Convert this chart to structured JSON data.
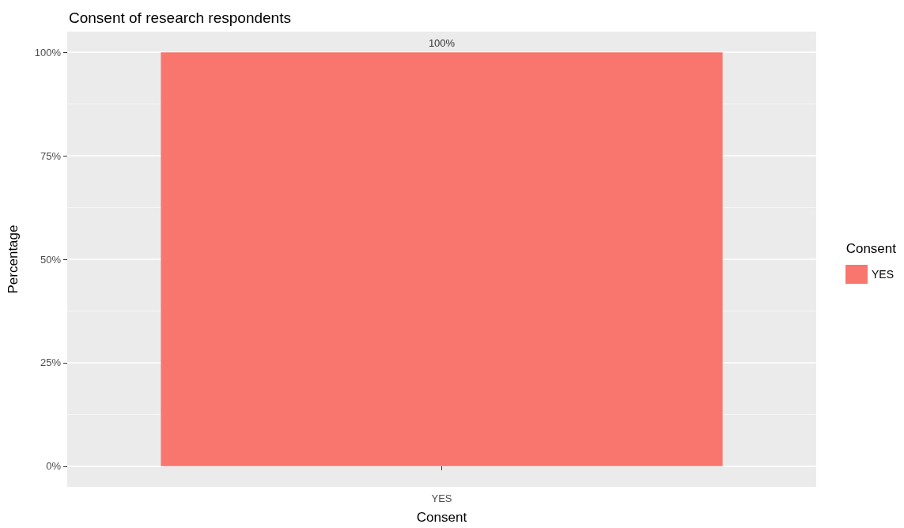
{
  "chart_data": {
    "type": "bar",
    "title": "Consent of research respondents",
    "xlabel": "Consent",
    "ylabel": "Percentage",
    "legend_title": "Consent",
    "categories": [
      "YES"
    ],
    "series": [
      {
        "name": "YES",
        "color": "#f8766d",
        "values": [
          100
        ],
        "value_labels": [
          "100%"
        ]
      }
    ],
    "ylim": [
      -5,
      105
    ],
    "yticks": [
      {
        "value": 0,
        "label": "0%"
      },
      {
        "value": 25,
        "label": "25%"
      },
      {
        "value": 50,
        "label": "50%"
      },
      {
        "value": 75,
        "label": "75%"
      },
      {
        "value": 100,
        "label": "100%"
      }
    ],
    "grid": true,
    "legend": "right"
  }
}
